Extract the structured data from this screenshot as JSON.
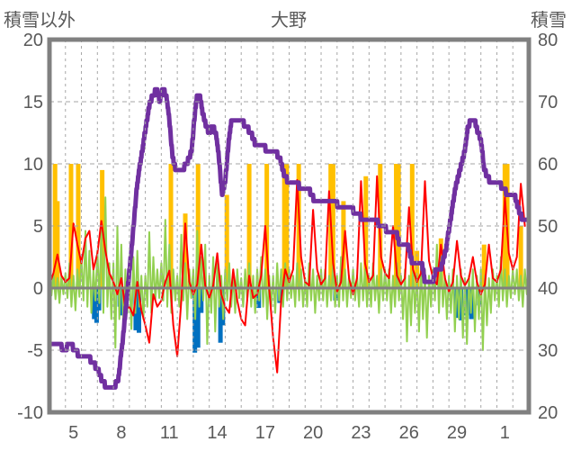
{
  "chart_data": {
    "type": "line",
    "title": "大野",
    "left_axis": {
      "title": "積雪以外",
      "min": -10,
      "max": 20,
      "ticks": [
        20,
        15,
        10,
        5,
        0,
        -5,
        -10
      ]
    },
    "right_axis": {
      "title": "積雪",
      "min": 20,
      "max": 80,
      "ticks": [
        80,
        70,
        60,
        50,
        40,
        30,
        20
      ]
    },
    "x_axis": {
      "start_day": 4,
      "end_day": 34,
      "tick_days": [
        5,
        8,
        11,
        14,
        17,
        20,
        23,
        26,
        29,
        32
      ],
      "tick_labels": [
        "5",
        "8",
        "11",
        "14",
        "17",
        "20",
        "23",
        "26",
        "29",
        "1"
      ],
      "grid_every_day": true
    },
    "colors": {
      "frame": "#808080",
      "grid": "#A6A6A6",
      "zero_line": "#808080",
      "labels": "#595959",
      "snow_depth": "#7030A0",
      "red_line": "#FF0000",
      "green_line": "#92D050",
      "orange_bars": "#FFC000",
      "blue_bars": "#0070C0"
    },
    "series": {
      "snow_depth": {
        "type": "step-line",
        "axis": "right",
        "unit": "cm",
        "points": [
          [
            4.0,
            31
          ],
          [
            4.6,
            31
          ],
          [
            4.9,
            30
          ],
          [
            5.3,
            31
          ],
          [
            5.9,
            29
          ],
          [
            6.4,
            29
          ],
          [
            6.7,
            28
          ],
          [
            7.0,
            27
          ],
          [
            7.3,
            25
          ],
          [
            7.6,
            24
          ],
          [
            8.0,
            24
          ],
          [
            8.3,
            25
          ],
          [
            8.6,
            32
          ],
          [
            8.9,
            40
          ],
          [
            9.2,
            48
          ],
          [
            9.5,
            57
          ],
          [
            9.8,
            62
          ],
          [
            10.1,
            67
          ],
          [
            10.3,
            70
          ],
          [
            10.5,
            71
          ],
          [
            10.7,
            72
          ],
          [
            10.9,
            70
          ],
          [
            11.1,
            72
          ],
          [
            11.3,
            71
          ],
          [
            11.5,
            67
          ],
          [
            11.7,
            61
          ],
          [
            11.9,
            59
          ],
          [
            12.3,
            59
          ],
          [
            12.6,
            60
          ],
          [
            12.9,
            62
          ],
          [
            13.1,
            68
          ],
          [
            13.25,
            71
          ],
          [
            13.4,
            71
          ],
          [
            13.6,
            68
          ],
          [
            13.8,
            66
          ],
          [
            14.0,
            65
          ],
          [
            14.2,
            66
          ],
          [
            14.4,
            65
          ],
          [
            14.6,
            61
          ],
          [
            14.8,
            55
          ],
          [
            15.0,
            57
          ],
          [
            15.2,
            63
          ],
          [
            15.4,
            67
          ],
          [
            15.7,
            67
          ],
          [
            16.0,
            67
          ],
          [
            16.3,
            66
          ],
          [
            16.6,
            65
          ],
          [
            16.9,
            63
          ],
          [
            17.3,
            63
          ],
          [
            17.7,
            62
          ],
          [
            18.1,
            62
          ],
          [
            18.4,
            61
          ],
          [
            18.7,
            58
          ],
          [
            19.0,
            57
          ],
          [
            19.4,
            57
          ],
          [
            19.8,
            56
          ],
          [
            20.2,
            56
          ],
          [
            20.6,
            54
          ],
          [
            21.2,
            54
          ],
          [
            21.8,
            54
          ],
          [
            22.2,
            53
          ],
          [
            22.8,
            53
          ],
          [
            23.2,
            52
          ],
          [
            23.7,
            51
          ],
          [
            24.2,
            51
          ],
          [
            24.9,
            50
          ],
          [
            25.2,
            49
          ],
          [
            25.7,
            49
          ],
          [
            25.9,
            47
          ],
          [
            26.4,
            47
          ],
          [
            26.7,
            44
          ],
          [
            27.3,
            44
          ],
          [
            27.5,
            41
          ],
          [
            28.0,
            41
          ],
          [
            28.2,
            43
          ],
          [
            28.5,
            43
          ],
          [
            28.8,
            46
          ],
          [
            29.1,
            51
          ],
          [
            29.4,
            56
          ],
          [
            29.7,
            59
          ],
          [
            30.0,
            62
          ],
          [
            30.2,
            66
          ],
          [
            30.4,
            67
          ],
          [
            30.6,
            67
          ],
          [
            30.8,
            65
          ],
          [
            31.0,
            64
          ],
          [
            31.2,
            59
          ],
          [
            31.4,
            58
          ],
          [
            31.6,
            57
          ],
          [
            31.9,
            57
          ],
          [
            32.1,
            57
          ],
          [
            32.4,
            56
          ],
          [
            32.7,
            55
          ],
          [
            33.1,
            55
          ],
          [
            33.3,
            53
          ],
          [
            33.6,
            51
          ],
          [
            33.85,
            51
          ],
          [
            34.0,
            51
          ]
        ]
      },
      "red_line": {
        "type": "line",
        "axis": "left",
        "samples_per_day": 4,
        "start_day": 4,
        "values": [
          0.3,
          1.2,
          2.7,
          1.0,
          0.5,
          0.8,
          5.2,
          3.5,
          2.0,
          4.0,
          4.6,
          1.5,
          2.8,
          5.4,
          3.0,
          1.2,
          0.5,
          -0.5,
          0.8,
          -1.7,
          -1.5,
          -2.2,
          0.5,
          -1.8,
          -3.0,
          -4.4,
          -0.5,
          -1.5,
          -1.0,
          0.5,
          1.4,
          -3.0,
          -5.5,
          -1.0,
          5.2,
          0.5,
          -0.5,
          0.3,
          3.5,
          0.2,
          -0.8,
          0.2,
          2.8,
          -0.5,
          -1.5,
          -2.0,
          1.5,
          -1.0,
          -2.5,
          -3.0,
          1.0,
          -0.8,
          -0.5,
          1.0,
          5.0,
          0.0,
          -4.0,
          -6.8,
          -1.0,
          1.5,
          0.5,
          1.5,
          8.7,
          2.5,
          0.5,
          0.2,
          6.3,
          1.5,
          0.3,
          0.8,
          7.8,
          2.0,
          -0.3,
          0.5,
          4.6,
          0.8,
          -0.5,
          0.8,
          8.6,
          2.0,
          0.5,
          1.0,
          9.0,
          2.5,
          1.2,
          0.8,
          5.0,
          1.0,
          0.3,
          0.8,
          6.5,
          1.5,
          0.5,
          1.2,
          8.6,
          2.2,
          0.8,
          0.3,
          3.5,
          0.8,
          -0.3,
          0.5,
          3.8,
          1.0,
          0.2,
          0.8,
          2.5,
          0.5,
          -0.5,
          0.3,
          3.5,
          0.8,
          0.5,
          1.5,
          7.3,
          2.8,
          1.5,
          2.5,
          8.4,
          5.0
        ]
      },
      "green_line": {
        "type": "line",
        "axis": "left",
        "samples_per_day": 8,
        "start_day": 4,
        "values": [
          0.5,
          -0.6,
          1.2,
          -0.9,
          0.8,
          -1.2,
          1.0,
          -0.5,
          1.2,
          -0.8,
          2.0,
          -1.5,
          1.0,
          -1.8,
          1.5,
          -0.7,
          2.5,
          -1.0,
          4.6,
          -1.5,
          3.0,
          -2.0,
          1.5,
          -1.0,
          3.0,
          -1.2,
          4.8,
          -2.0,
          7.3,
          -1.5,
          2.0,
          -2.5,
          2.0,
          -4.8,
          5.0,
          -2.5,
          3.5,
          -3.3,
          1.5,
          -2.0,
          1.5,
          -3.3,
          2.5,
          -2.0,
          3.0,
          -1.5,
          1.0,
          -2.5,
          1.0,
          -1.5,
          4.5,
          -2.0,
          2.5,
          -1.0,
          1.5,
          -0.8,
          2.0,
          -1.0,
          5.5,
          -1.5,
          3.5,
          -2.0,
          1.5,
          -1.0,
          1.0,
          -1.5,
          4.3,
          -1.0,
          2.0,
          -2.5,
          1.5,
          -0.8,
          1.5,
          -2.5,
          4.6,
          -1.5,
          2.5,
          -1.0,
          3.5,
          -4.5,
          1.0,
          -2.0,
          2.5,
          -3.5,
          2.0,
          -1.5,
          1.0,
          -2.5,
          1.5,
          -1.0,
          2.0,
          -1.5,
          1.0,
          -2.0,
          1.5,
          -0.8,
          0.8,
          -1.5,
          1.5,
          -1.0,
          2.0,
          -1.5,
          1.0,
          -2.0,
          1.5,
          -1.0,
          2.5,
          -1.5,
          1.5,
          -2.5,
          1.0,
          -1.5,
          1.0,
          -2.0,
          2.0,
          -1.0,
          1.5,
          -1.5,
          2.0,
          -1.0,
          1.5,
          -0.8,
          1.0,
          -1.5,
          2.0,
          -1.0,
          1.5,
          -1.5,
          0.8,
          -1.5,
          2.0,
          -1.0,
          1.5,
          -2.0,
          1.0,
          -1.0,
          1.5,
          -1.0,
          1.5,
          -1.5,
          1.0,
          -1.0,
          2.0,
          -1.5,
          1.0,
          -1.5,
          2.5,
          -1.0,
          1.5,
          -1.5,
          1.0,
          -0.8,
          1.5,
          -1.0,
          1.0,
          -1.5,
          2.0,
          -1.0,
          1.5,
          -1.5,
          1.0,
          -1.5,
          2.0,
          -1.0,
          1.0,
          -2.0,
          1.5,
          -1.0,
          1.5,
          -1.0,
          1.5,
          -2.0,
          1.0,
          -1.5,
          2.0,
          -1.0,
          1.0,
          -2.5,
          1.5,
          -4.3,
          1.0,
          -3.0,
          1.5,
          -2.0,
          1.0,
          -3.5,
          2.0,
          -2.5,
          1.5,
          -4.0,
          1.0,
          -1.5,
          1.5,
          -1.0,
          3.5,
          -2.0,
          2.5,
          -1.5,
          1.0,
          -2.5,
          1.0,
          -2.0,
          1.5,
          -3.5,
          1.0,
          -2.5,
          1.5,
          -4.0,
          0.8,
          -4.5,
          1.0,
          -2.0,
          1.5,
          -3.5,
          1.0,
          -2.5,
          1.5,
          -5.0,
          1.0,
          -3.0,
          0.8,
          -2.0,
          1.5,
          -1.0,
          1.0,
          -1.5,
          2.5,
          -1.0,
          1.5,
          -1.5,
          1.0,
          -0.8,
          1.5,
          -0.5,
          1.5,
          -1.0,
          1.0,
          -1.5,
          1.5,
          -0.5
        ]
      },
      "orange_bars": {
        "type": "bar",
        "axis": "left",
        "bars": [
          [
            4.35,
            10
          ],
          [
            4.5,
            7
          ],
          [
            5.35,
            10
          ],
          [
            5.8,
            10
          ],
          [
            7.3,
            9.5
          ],
          [
            11.6,
            10
          ],
          [
            12.5,
            6
          ],
          [
            13.3,
            10
          ],
          [
            15.1,
            7.5
          ],
          [
            16.5,
            10
          ],
          [
            17.6,
            10
          ],
          [
            18.7,
            10
          ],
          [
            18.85,
            10
          ],
          [
            19.6,
            10
          ],
          [
            21.6,
            10
          ],
          [
            21.75,
            10
          ],
          [
            22.4,
            7
          ],
          [
            23.8,
            9
          ],
          [
            24.7,
            10
          ],
          [
            25.7,
            10
          ],
          [
            25.85,
            10
          ],
          [
            26.7,
            10
          ],
          [
            27.0,
            3
          ],
          [
            28.5,
            4
          ],
          [
            31.2,
            3.5
          ],
          [
            32.5,
            10
          ],
          [
            32.65,
            10
          ],
          [
            33.5,
            5
          ]
        ]
      },
      "blue_bars": {
        "type": "bar",
        "axis": "left",
        "bars": [
          [
            6.8,
            -2.5
          ],
          [
            6.95,
            -2.8
          ],
          [
            7.1,
            -1.8
          ],
          [
            8.4,
            -1.5
          ],
          [
            8.55,
            -2.2
          ],
          [
            9.4,
            -3.4
          ],
          [
            9.6,
            -3.6
          ],
          [
            13.1,
            -5.2
          ],
          [
            13.3,
            -4.8
          ],
          [
            13.5,
            -2.0
          ],
          [
            14.7,
            -4.4
          ],
          [
            14.85,
            -3.0
          ],
          [
            17.1,
            -1.6
          ],
          [
            18.4,
            -1.2
          ],
          [
            21.9,
            -1.0
          ],
          [
            29.5,
            -2.4
          ],
          [
            29.75,
            -2.6
          ],
          [
            30.1,
            -2.2
          ],
          [
            30.4,
            -2.5
          ],
          [
            30.9,
            -1.4
          ]
        ]
      }
    }
  }
}
